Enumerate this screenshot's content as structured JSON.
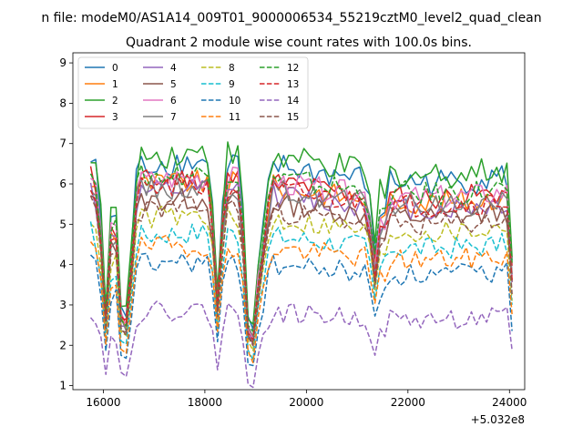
{
  "chart_data": {
    "type": "line",
    "suptitle": "n file: modeM0/AS1A14_009T01_9000006534_55219cztM0_level2_quad_clean",
    "title": "Quadrant 2 module wise count rates with 100.0s bins.",
    "xlabel": "",
    "ylabel": "",
    "x_offset_label": "+5.032e8",
    "xlim": [
      15400,
      24300
    ],
    "ylim": [
      0.9,
      9.25
    ],
    "xticks": [
      16000,
      18000,
      20000,
      22000,
      24000
    ],
    "xtick_labels": [
      "16000",
      "18000",
      "20000",
      "22000",
      "24000"
    ],
    "yticks": [
      1,
      2,
      3,
      4,
      5,
      6,
      7,
      8,
      9
    ],
    "ytick_labels": [
      "1",
      "2",
      "3",
      "4",
      "5",
      "6",
      "7",
      "8",
      "9"
    ],
    "legend_location": "upper-left",
    "series": [
      {
        "name": "0",
        "color": "#1f77b4",
        "dash": "solid",
        "base": 6.3,
        "amp": 0.35,
        "seed": 1,
        "bump": 1.0
      },
      {
        "name": "1",
        "color": "#ff7f0e",
        "dash": "solid",
        "base": 5.8,
        "amp": 0.3,
        "seed": 2,
        "bump": 1.4
      },
      {
        "name": "2",
        "color": "#2ca02c",
        "dash": "solid",
        "base": 6.5,
        "amp": 0.35,
        "seed": 3,
        "bump": 1.6
      },
      {
        "name": "3",
        "color": "#d62728",
        "dash": "solid",
        "base": 5.9,
        "amp": 0.3,
        "seed": 4,
        "bump": 1.0
      },
      {
        "name": "4",
        "color": "#9467bd",
        "dash": "solid",
        "base": 5.6,
        "amp": 0.3,
        "seed": 5,
        "bump": 1.2
      },
      {
        "name": "5",
        "color": "#8c564b",
        "dash": "solid",
        "base": 5.4,
        "amp": 0.28,
        "seed": 6,
        "bump": 0.9
      },
      {
        "name": "6",
        "color": "#e377c2",
        "dash": "solid",
        "base": 5.9,
        "amp": 0.3,
        "seed": 7,
        "bump": 1.2
      },
      {
        "name": "7",
        "color": "#7f7f7f",
        "dash": "solid",
        "base": 5.7,
        "amp": 0.3,
        "seed": 8,
        "bump": 1.0
      },
      {
        "name": "8",
        "color": "#bcbd22",
        "dash": "dashed",
        "base": 5.0,
        "amp": 0.28,
        "seed": 9,
        "bump": 0.8
      },
      {
        "name": "9",
        "color": "#17becf",
        "dash": "dashed",
        "base": 4.6,
        "amp": 0.28,
        "seed": 10,
        "bump": 0.8
      },
      {
        "name": "10",
        "color": "#1f77b4",
        "dash": "dashed",
        "base": 3.9,
        "amp": 0.28,
        "seed": 11,
        "bump": 0.6
      },
      {
        "name": "11",
        "color": "#ff7f0e",
        "dash": "dashed",
        "base": 4.3,
        "amp": 0.28,
        "seed": 12,
        "bump": 0.8
      },
      {
        "name": "12",
        "color": "#2ca02c",
        "dash": "dashed",
        "base": 6.0,
        "amp": 0.32,
        "seed": 13,
        "bump": 1.3
      },
      {
        "name": "13",
        "color": "#d62728",
        "dash": "dashed",
        "base": 5.7,
        "amp": 0.3,
        "seed": 14,
        "bump": 1.2
      },
      {
        "name": "14",
        "color": "#9467bd",
        "dash": "dashed",
        "base": 2.75,
        "amp": 0.25,
        "seed": 15,
        "bump": 0.4
      },
      {
        "name": "15",
        "color": "#8c564b",
        "dash": "dashed",
        "base": 5.2,
        "amp": 0.28,
        "seed": 16,
        "bump": 0.9
      }
    ]
  }
}
